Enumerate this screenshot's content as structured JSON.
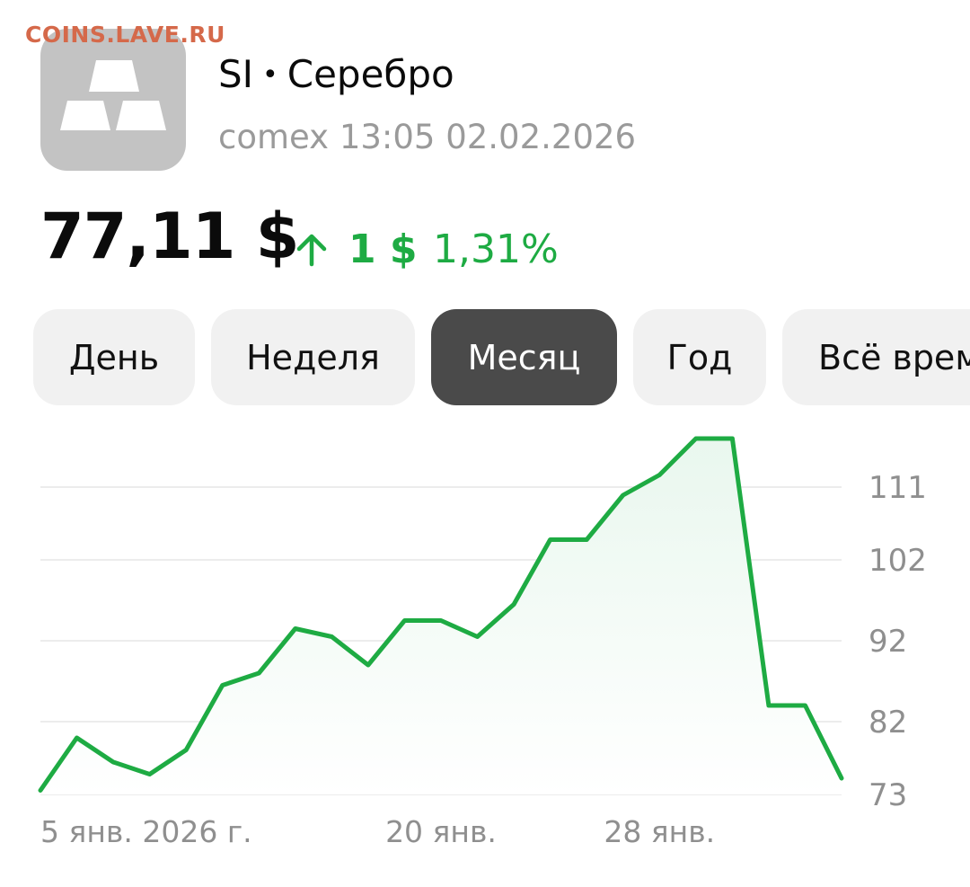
{
  "watermark": "COINS.LAVE.RU",
  "header": {
    "icon": "silver-bars-icon",
    "ticker": "SI",
    "name": "Серебро",
    "exchange": "comex",
    "time": "13:05",
    "date": "02.02.2026"
  },
  "price": {
    "value": "77,11 $",
    "change_abs": "1 $",
    "change_pct": "1,31%",
    "direction": "up",
    "color_up": "#1eab43"
  },
  "tabs": [
    {
      "label": "День",
      "active": false
    },
    {
      "label": "Неделя",
      "active": false
    },
    {
      "label": "Месяц",
      "active": true
    },
    {
      "label": "Год",
      "active": false
    },
    {
      "label": "Всё время",
      "active": false
    }
  ],
  "chart_data": {
    "type": "area",
    "x": [
      "2026-01-05",
      "2026-01-06",
      "2026-01-07",
      "2026-01-08",
      "2026-01-09",
      "2026-01-12",
      "2026-01-13",
      "2026-01-14",
      "2026-01-15",
      "2026-01-16",
      "2026-01-19",
      "2026-01-20",
      "2026-01-21",
      "2026-01-22",
      "2026-01-23",
      "2026-01-26",
      "2026-01-27",
      "2026-01-28",
      "2026-01-29",
      "2026-01-30",
      "2026-02-02",
      "2026-02-03",
      "2026-02-04"
    ],
    "values": [
      73.5,
      80.0,
      77.0,
      75.5,
      78.5,
      86.5,
      88.0,
      93.5,
      92.5,
      89.0,
      94.5,
      94.5,
      92.5,
      96.5,
      104.5,
      104.5,
      110.0,
      112.5,
      117.0,
      117.0,
      84.0,
      84.0,
      75.0
    ],
    "yticks": [
      111,
      102,
      92,
      82,
      73
    ],
    "ylim": [
      73,
      120
    ],
    "xtick_labels": [
      {
        "x": "2026-01-05",
        "label": "5 янв. 2026 г."
      },
      {
        "x": "2026-01-20",
        "label": "20 янв."
      },
      {
        "x": "2026-01-28",
        "label": "28 янв."
      }
    ],
    "grid": true,
    "line_color": "#1eab43",
    "fill_color": "#e9f7ee"
  }
}
